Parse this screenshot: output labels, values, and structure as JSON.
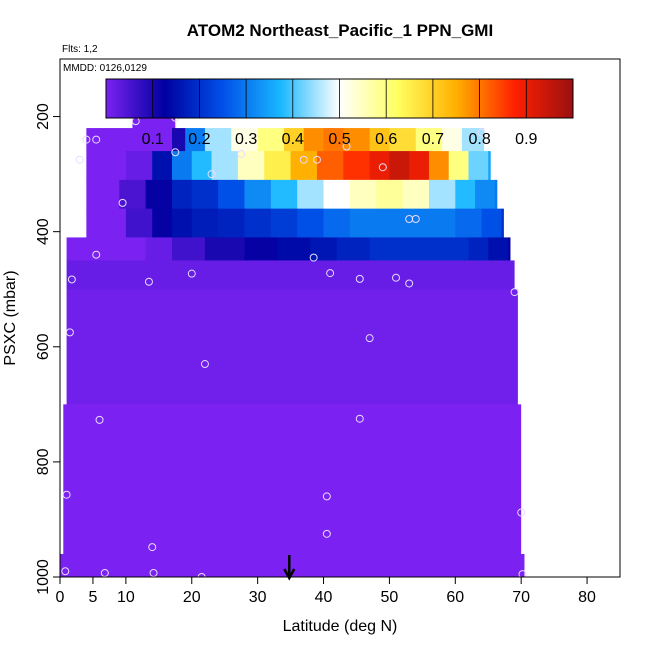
{
  "chart_data": {
    "type": "heatmap",
    "title": "ATOM2 Northeast_Pacific_1 PPN_GMI",
    "info_lines": [
      "Flts: 1,2",
      "MMDD: 0126,0129"
    ],
    "xlabel": "Latitude (deg N)",
    "ylabel": "PSXC (mbar)",
    "xlim": [
      0,
      85
    ],
    "ylim": [
      1000,
      100
    ],
    "x_ticks": [
      0,
      5,
      10,
      20,
      30,
      40,
      50,
      60,
      70,
      80
    ],
    "y_ticks": [
      200,
      400,
      600,
      800,
      1000
    ],
    "colorbar": {
      "range": [
        0,
        1
      ],
      "ticks": [
        0.1,
        0.2,
        0.3,
        0.4,
        0.5,
        0.6,
        0.7,
        0.8,
        0.9
      ],
      "tick_labels": [
        "0.1",
        "0.2",
        "0.3",
        "0.4",
        "0.5",
        "0.6",
        "0.7",
        "0.8",
        "0.9"
      ],
      "colors": [
        "#7b22f2",
        "#0000a0",
        "#0050e8",
        "#1ab8ff",
        "#ffffff",
        "#ffff60",
        "#ffb000",
        "#ff2000",
        "#9a1010"
      ]
    },
    "background_value": 0.0,
    "bands": [
      {
        "p_top": 170,
        "p_bot": 220,
        "x_start": 11,
        "x_end": 17.5,
        "c": 0.0
      },
      {
        "p_top": 220,
        "p_bot": 260,
        "x_start": 4,
        "x_end": 64,
        "cells": [
          [
            4,
            0.0
          ],
          [
            17,
            0.1
          ],
          [
            19,
            0.3
          ],
          [
            22,
            0.45
          ],
          [
            26,
            0.52
          ],
          [
            30,
            0.6
          ],
          [
            34,
            0.7
          ],
          [
            37,
            0.78
          ],
          [
            40,
            0.8
          ],
          [
            43,
            0.78
          ],
          [
            47,
            0.72
          ],
          [
            50,
            0.68
          ],
          [
            54,
            0.6
          ],
          [
            58,
            0.52
          ],
          [
            61,
            0.45
          ],
          [
            64,
            0.45
          ]
        ]
      },
      {
        "p_top": 260,
        "p_bot": 310,
        "x_start": 4,
        "x_end": 65,
        "cells": [
          [
            4,
            0.0
          ],
          [
            10,
            0.02
          ],
          [
            14,
            0.15
          ],
          [
            17,
            0.3
          ],
          [
            20,
            0.38
          ],
          [
            23,
            0.45
          ],
          [
            27,
            0.55
          ],
          [
            31,
            0.65
          ],
          [
            35,
            0.75
          ],
          [
            39,
            0.82
          ],
          [
            43,
            0.86
          ],
          [
            47,
            0.9
          ],
          [
            50,
            0.94
          ],
          [
            53,
            0.9
          ],
          [
            56,
            0.78
          ],
          [
            59,
            0.6
          ],
          [
            62,
            0.42
          ],
          [
            65,
            0.35
          ]
        ]
      },
      {
        "p_top": 310,
        "p_bot": 360,
        "x_start": 4,
        "x_end": 66,
        "cells": [
          [
            4,
            0.0
          ],
          [
            9,
            0.05
          ],
          [
            13,
            0.12
          ],
          [
            17,
            0.18
          ],
          [
            20,
            0.2
          ],
          [
            24,
            0.25
          ],
          [
            28,
            0.32
          ],
          [
            32,
            0.38
          ],
          [
            36,
            0.45
          ],
          [
            40,
            0.5
          ],
          [
            44,
            0.55
          ],
          [
            48,
            0.58
          ],
          [
            52,
            0.55
          ],
          [
            56,
            0.45
          ],
          [
            60,
            0.38
          ],
          [
            63,
            0.32
          ],
          [
            66,
            0.3
          ]
        ]
      },
      {
        "p_top": 360,
        "p_bot": 410,
        "x_start": 4,
        "x_end": 67,
        "cells": [
          [
            4,
            0.0
          ],
          [
            10,
            0.06
          ],
          [
            14,
            0.12
          ],
          [
            17,
            0.15
          ],
          [
            20,
            0.17
          ],
          [
            24,
            0.18
          ],
          [
            28,
            0.2
          ],
          [
            32,
            0.22
          ],
          [
            36,
            0.25
          ],
          [
            40,
            0.28
          ],
          [
            44,
            0.3
          ],
          [
            48,
            0.3
          ],
          [
            52,
            0.3
          ],
          [
            56,
            0.3
          ],
          [
            60,
            0.28
          ],
          [
            64,
            0.25
          ],
          [
            67,
            0.2
          ]
        ]
      },
      {
        "p_top": 410,
        "p_bot": 450,
        "x_start": 1,
        "x_end": 68,
        "cells": [
          [
            1,
            0.0
          ],
          [
            13,
            0.02
          ],
          [
            17,
            0.06
          ],
          [
            22,
            0.1
          ],
          [
            28,
            0.12
          ],
          [
            33,
            0.14
          ],
          [
            38,
            0.16
          ],
          [
            42,
            0.18
          ],
          [
            47,
            0.2
          ],
          [
            52,
            0.2
          ],
          [
            57,
            0.2
          ],
          [
            62,
            0.18
          ],
          [
            65,
            0.15
          ],
          [
            68,
            0.12
          ]
        ]
      },
      {
        "p_top": 450,
        "p_bot": 500,
        "x_start": 1,
        "x_end": 69,
        "c": 0.02
      },
      {
        "p_top": 500,
        "p_bot": 700,
        "x_start": 1,
        "x_end": 69.5,
        "c": 0.01
      },
      {
        "p_top": 700,
        "p_bot": 960,
        "x_start": 0.5,
        "x_end": 70,
        "c": 0.0
      },
      {
        "p_top": 960,
        "p_bot": 1000,
        "x_start": 0,
        "x_end": 70.5,
        "c": 0.0
      }
    ],
    "observation_points": [
      [
        11.5,
        208
      ],
      [
        17.5,
        202
      ],
      [
        4,
        240
      ],
      [
        5.5,
        240
      ],
      [
        3,
        275
      ],
      [
        17.5,
        262
      ],
      [
        23,
        300
      ],
      [
        27.5,
        265
      ],
      [
        37,
        275
      ],
      [
        39,
        275
      ],
      [
        43.5,
        252
      ],
      [
        49,
        288
      ],
      [
        64,
        228
      ],
      [
        9.5,
        350
      ],
      [
        53,
        378
      ],
      [
        54,
        378
      ],
      [
        5.5,
        440
      ],
      [
        1.8,
        483
      ],
      [
        13.5,
        487
      ],
      [
        20,
        473
      ],
      [
        38.5,
        445
      ],
      [
        41,
        472
      ],
      [
        45.5,
        482
      ],
      [
        51,
        480
      ],
      [
        53,
        490
      ],
      [
        69,
        505
      ],
      [
        1.5,
        575
      ],
      [
        22,
        630
      ],
      [
        47,
        585
      ],
      [
        6,
        727
      ],
      [
        45.5,
        725
      ],
      [
        1,
        857
      ],
      [
        40.5,
        860
      ],
      [
        70,
        888
      ],
      [
        40.5,
        925
      ],
      [
        14,
        948
      ],
      [
        0.8,
        990
      ],
      [
        6.8,
        993
      ],
      [
        14.2,
        993
      ],
      [
        21.5,
        1000
      ],
      [
        46.5,
        1010
      ],
      [
        57,
        1006
      ],
      [
        70.2,
        995
      ]
    ],
    "marker_latitude": 34.8
  }
}
